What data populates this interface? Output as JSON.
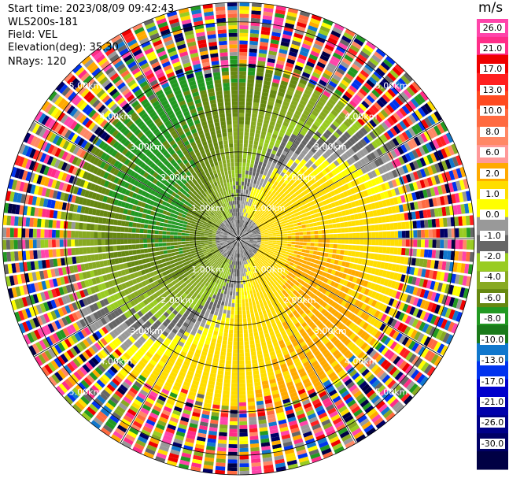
{
  "header": {
    "start_time": "Start time: 2023/08/09 09:42:43",
    "site": "WLS200s-181",
    "field": "Field: VEL",
    "elevation": "Elevation(deg): 35.30",
    "nrays": "NRays: 120"
  },
  "chart_data": {
    "type": "heatmap",
    "projection": "polar PPI scan",
    "field": "VEL",
    "units": "m/s",
    "elevation_deg": 35.3,
    "n_rays": 120,
    "range_rings_km": [
      1.0,
      2.0,
      3.0,
      4.0,
      5.0
    ],
    "range_ring_labels": [
      "1.00km",
      "2.00km",
      "3.00km",
      "4.00km",
      "5.00km"
    ],
    "radial_lines": "every 30 deg",
    "colorbar": {
      "unit_label": "m/s",
      "range": [
        -30,
        30
      ],
      "tick_labels": [
        "26.0",
        "21.0",
        "17.0",
        "13.0",
        "10.0",
        "8.0",
        "6.0",
        "2.0",
        "1.0",
        "0.0",
        "-1.0",
        "-2.0",
        "-4.0",
        "-6.0",
        "-8.0",
        "-10.0",
        "-13.0",
        "-17.0",
        "-21.0",
        "-26.0",
        "-30.0"
      ],
      "colors_top_to_bottom": [
        "#ff44aa",
        "#ff2d88",
        "#ee0000",
        "#ff2020",
        "#ff4a20",
        "#ff6a40",
        "#ff8866",
        "#ff9999",
        "#ffaa00",
        "#ffdd00",
        "#ffff00",
        "#999999",
        "#666666",
        "#99cc22",
        "#88aa22",
        "#668811",
        "#229922",
        "#1a7a1a",
        "#1177cc",
        "#0033ee",
        "#0000cc",
        "#0000aa",
        "#000088",
        "#000066",
        "#000044"
      ]
    },
    "pattern": {
      "positive_sector": "NE to SE (orange/yellow, receding +2 to +8 m/s)",
      "negative_sector": "SW to NW (green, approaching -2 to -8 m/s)",
      "near_zero_band": "grey zero-isodop curving from center to NW and SE",
      "noise_beyond_km": 3.9
    }
  }
}
